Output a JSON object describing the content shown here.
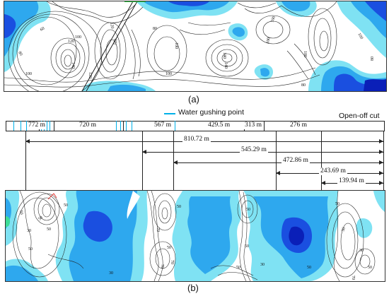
{
  "panel_a": {
    "caption": "(a)",
    "contour_labels": [
      "120",
      "100",
      "100",
      "120",
      "140",
      "80",
      "100",
      "60",
      "80",
      "100",
      "120",
      "140",
      "100",
      "100",
      "100",
      "80",
      "80",
      "100",
      "120",
      "140"
    ]
  },
  "legend": {
    "water_gushing_label": "Water gushing point",
    "open_off_label": "Open-off cut"
  },
  "segments": [
    "772 m",
    "720 m",
    "567 m",
    "429.5 m",
    "313 m",
    "276 m"
  ],
  "distances": [
    "810.72 m",
    "545.29 m",
    "472.86 m",
    "243.69 m",
    "139.94 m"
  ],
  "panel_b": {
    "caption": "(b)",
    "contour_labels": [
      "50",
      "50",
      "50",
      "30",
      "50",
      "50",
      "50",
      "50",
      "70",
      "50",
      "50",
      "70",
      "50",
      "50",
      "50",
      "30",
      "50",
      "30",
      "70",
      "50",
      "30",
      "70"
    ]
  },
  "colors": {
    "contour_light": "#7fe2f3",
    "contour_mid": "#2ea8ee",
    "contour_dark": "#1a4fe0",
    "contour_deep": "#0a1fb8",
    "water_point": "#00b0e8"
  }
}
